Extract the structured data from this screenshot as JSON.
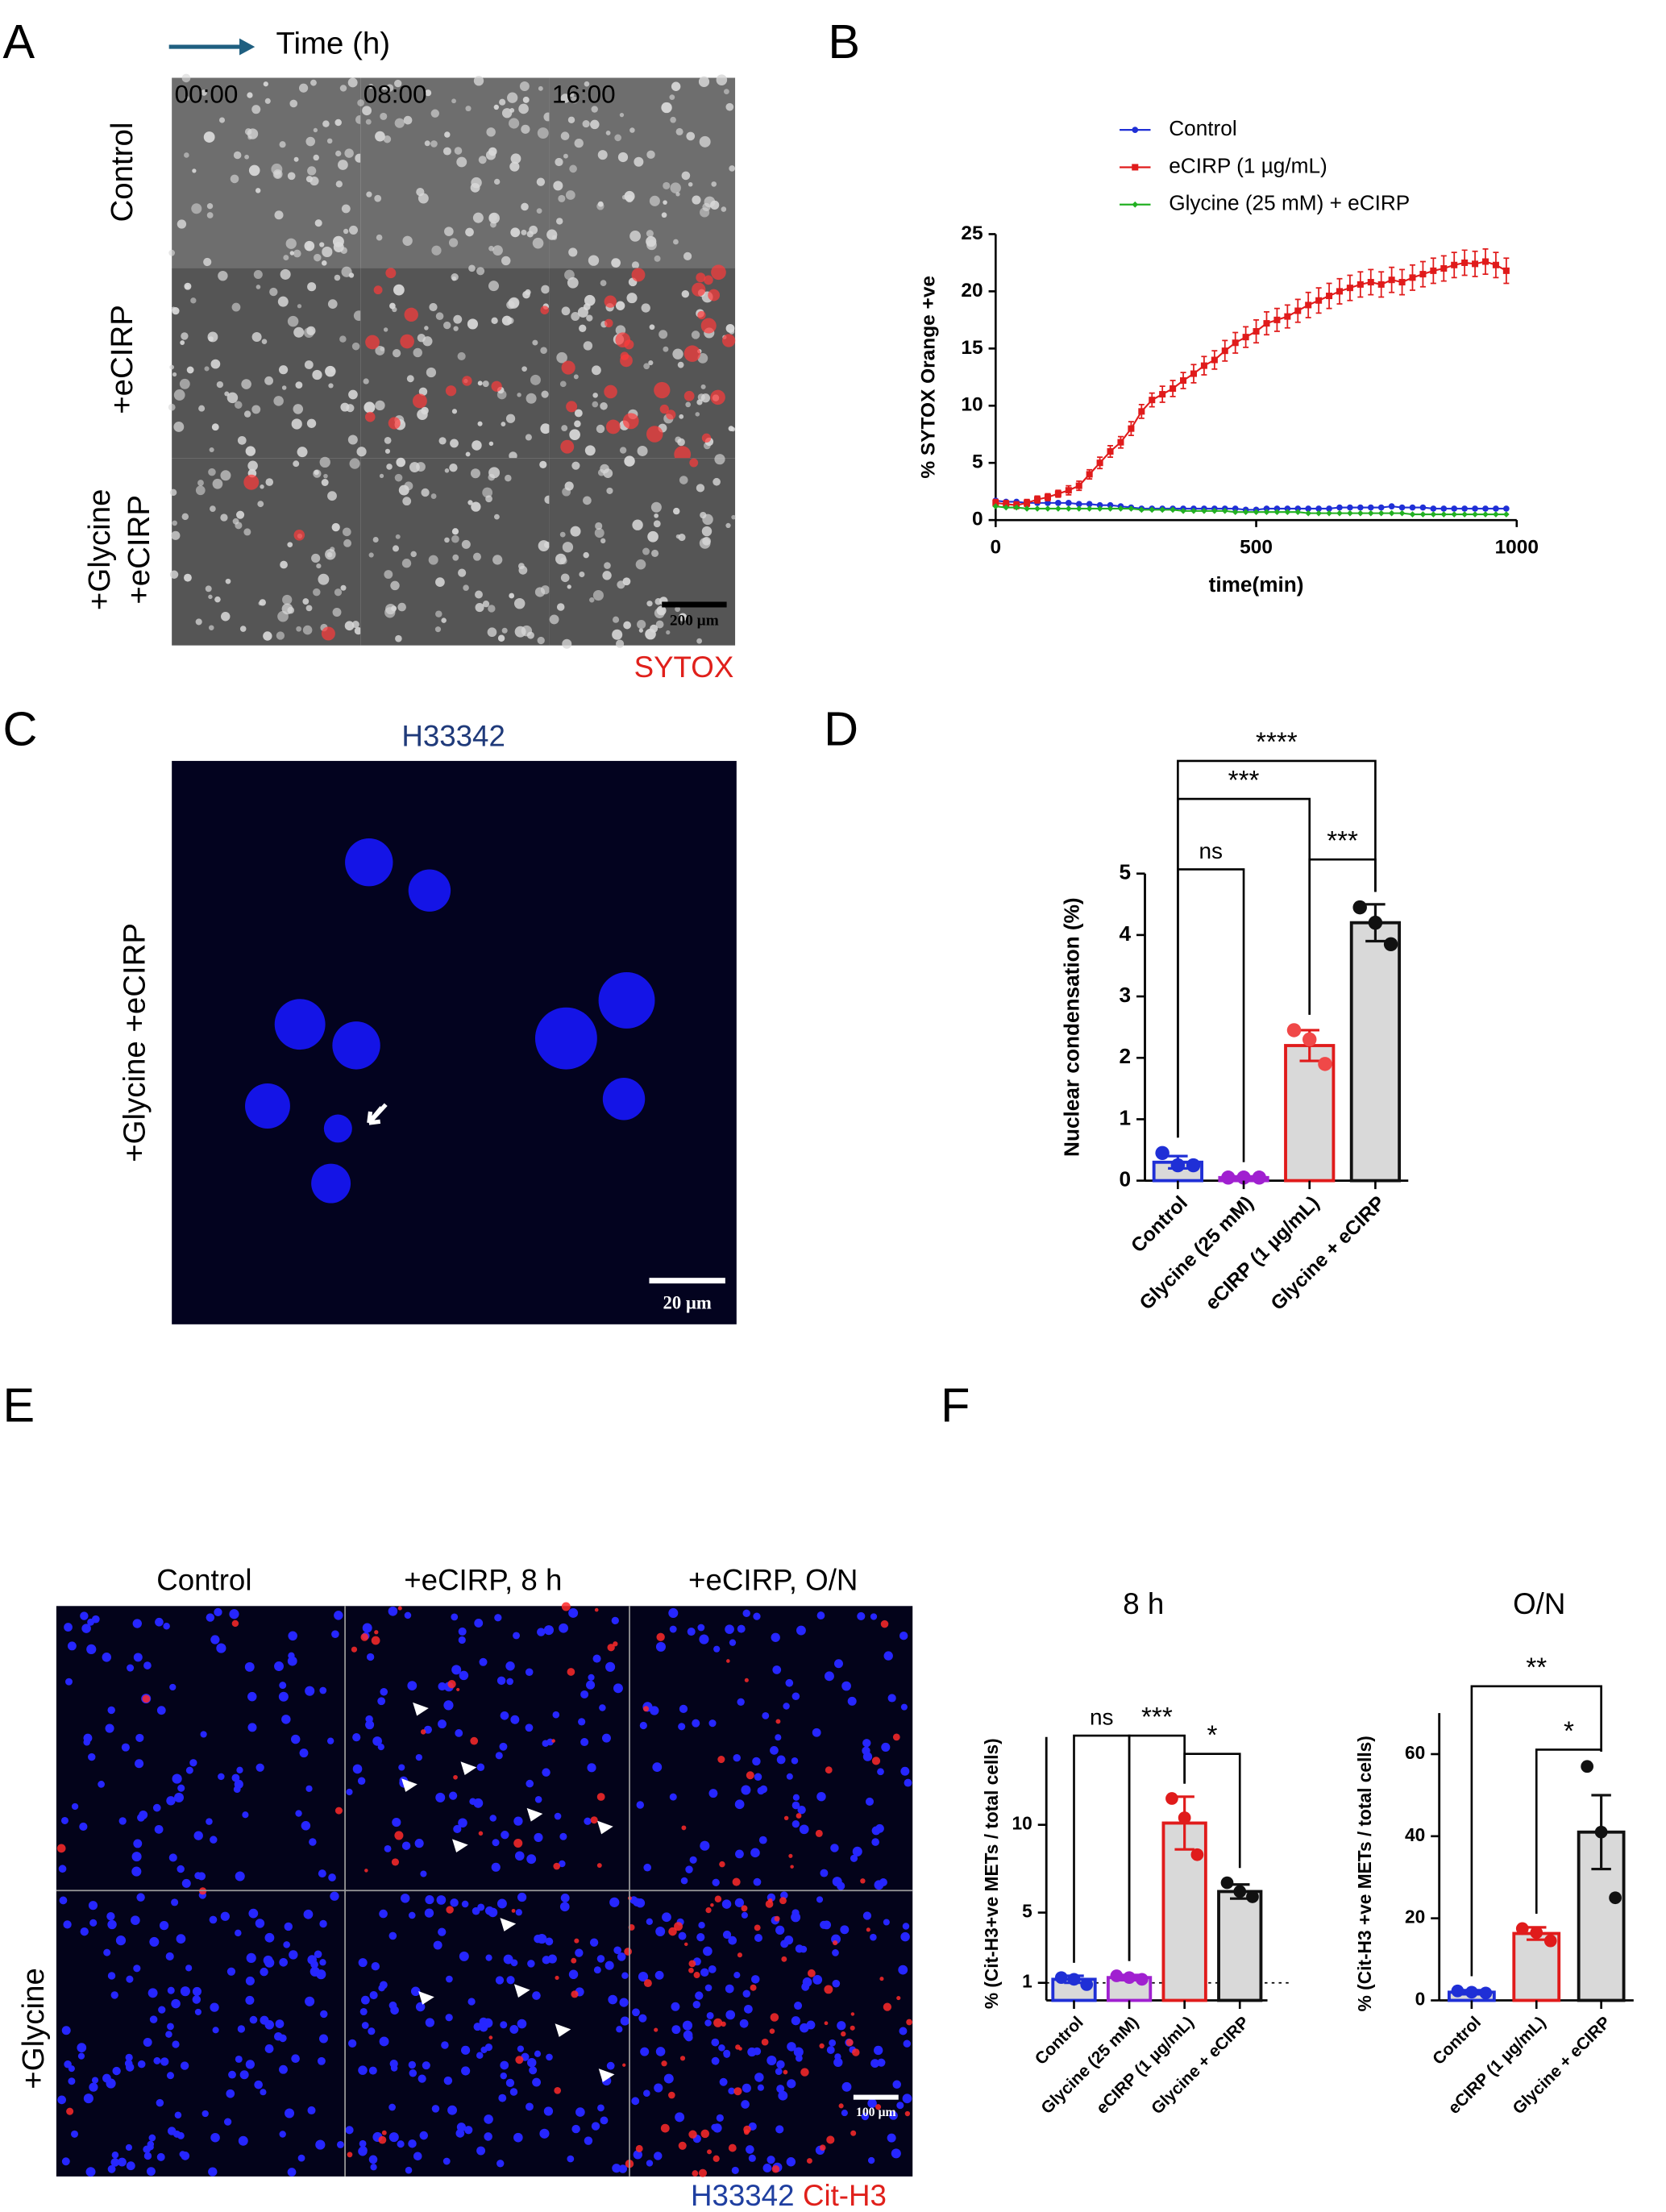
{
  "figure": {
    "panels": [
      "A",
      "B",
      "C",
      "D",
      "E",
      "F"
    ],
    "A": {
      "time_label": "Time (h)",
      "times": [
        "00:00",
        "08:00",
        "16:00"
      ],
      "rows": [
        "Control",
        "+eCIRP",
        [
          "+Glycine",
          "+eCIRP"
        ]
      ],
      "scale_bar": "200 µm",
      "stain": "SYTOX"
    },
    "C": {
      "stain": "H33342",
      "row": "+Glycine +eCIRP",
      "scale_bar": "20 µm"
    },
    "E": {
      "columns": [
        "Control",
        "+eCIRP, 8 h",
        "+eCIRP, O/N"
      ],
      "row": "+Glycine",
      "scale_bar": "100 µm",
      "stains": [
        {
          "name": "H33342",
          "color": "#1f3fa0"
        },
        {
          "name": "Cit-H3",
          "color": "#e0201b"
        }
      ]
    }
  },
  "chart_data": [
    {
      "type": "line",
      "xlabel": "time(min)",
      "ylabel": "% SYTOX Orange +ve",
      "xlim": [
        0,
        1000
      ],
      "xticks": [
        0,
        500,
        1000
      ],
      "ylim": [
        0,
        25
      ],
      "yticks": [
        0,
        5,
        10,
        15,
        20,
        25
      ],
      "x": [
        0,
        20,
        40,
        60,
        80,
        100,
        120,
        140,
        160,
        180,
        200,
        220,
        240,
        260,
        280,
        300,
        320,
        340,
        360,
        380,
        400,
        420,
        440,
        460,
        480,
        500,
        520,
        540,
        560,
        580,
        600,
        620,
        640,
        660,
        680,
        700,
        720,
        740,
        760,
        780,
        800,
        820,
        840,
        860,
        880,
        900,
        920,
        940,
        960,
        980
      ],
      "series": [
        {
          "name": "Control",
          "color": "#1f2fd6",
          "marker": "circle",
          "values": [
            1.7,
            1.6,
            1.6,
            1.5,
            1.5,
            1.5,
            1.5,
            1.5,
            1.4,
            1.4,
            1.3,
            1.3,
            1.2,
            1.1,
            1.0,
            1.0,
            1.0,
            1.0,
            1.0,
            1.0,
            1.0,
            1.0,
            1.0,
            1.0,
            0.9,
            0.9,
            1.0,
            1.0,
            1.0,
            1.0,
            1.0,
            1.0,
            1.0,
            1.1,
            1.1,
            1.1,
            1.1,
            1.1,
            1.2,
            1.1,
            1.1,
            1.1,
            1.0,
            1.0,
            1.0,
            1.0,
            1.0,
            1.0,
            1.0,
            1.0
          ]
        },
        {
          "name": "eCIRP (1 µg/mL)",
          "color": "#e01b1b",
          "marker": "square",
          "values": [
            1.5,
            1.4,
            1.3,
            1.5,
            1.8,
            2.0,
            2.3,
            2.6,
            3.0,
            4.0,
            5.0,
            6.0,
            6.8,
            8.0,
            9.5,
            10.5,
            11.0,
            11.5,
            12.2,
            12.8,
            13.5,
            14.0,
            14.8,
            15.5,
            16.0,
            16.5,
            17.2,
            17.5,
            17.8,
            18.3,
            18.8,
            19.2,
            19.6,
            20.0,
            20.3,
            20.6,
            20.8,
            20.6,
            21.0,
            20.8,
            21.2,
            21.5,
            21.8,
            22.0,
            22.3,
            22.5,
            22.4,
            22.6,
            22.3,
            21.8
          ],
          "errors": [
            0.3,
            0.3,
            0.3,
            0.3,
            0.3,
            0.3,
            0.3,
            0.4,
            0.4,
            0.4,
            0.5,
            0.5,
            0.5,
            0.6,
            0.6,
            0.6,
            0.7,
            0.7,
            0.7,
            0.8,
            0.8,
            0.8,
            0.9,
            0.9,
            0.9,
            1.0,
            1.0,
            1.0,
            1.0,
            1.0,
            1.1,
            1.1,
            1.1,
            1.1,
            1.1,
            1.1,
            1.1,
            1.1,
            1.1,
            1.1,
            1.1,
            1.1,
            1.1,
            1.1,
            1.1,
            1.1,
            1.1,
            1.1,
            1.1,
            1.1
          ]
        },
        {
          "name": "Glycine (25 mM) + eCIRP",
          "color": "#22b022",
          "marker": "diamond",
          "values": [
            1.2,
            1.1,
            1.1,
            1.0,
            1.0,
            1.0,
            1.0,
            1.0,
            1.0,
            1.0,
            1.0,
            1.0,
            1.0,
            1.0,
            0.9,
            0.9,
            0.9,
            0.9,
            0.8,
            0.8,
            0.8,
            0.8,
            0.8,
            0.7,
            0.7,
            0.7,
            0.7,
            0.7,
            0.7,
            0.7,
            0.6,
            0.6,
            0.6,
            0.6,
            0.6,
            0.6,
            0.6,
            0.6,
            0.6,
            0.6,
            0.5,
            0.5,
            0.5,
            0.5,
            0.5,
            0.5,
            0.5,
            0.5,
            0.5,
            0.5
          ]
        }
      ]
    },
    {
      "type": "bar",
      "ylabel": "Nuclear condensation (%)",
      "categories": [
        "Control",
        "Glycine (25 mM)",
        "eCIRP (1 µg/mL)",
        "Glycine + eCIRP"
      ],
      "values": [
        0.3,
        0.05,
        2.2,
        4.2
      ],
      "errors": [
        0.1,
        0.02,
        0.25,
        0.3
      ],
      "points": [
        [
          0.45,
          0.25,
          0.25
        ],
        [
          0.05,
          0.05,
          0.05
        ],
        [
          2.45,
          2.3,
          1.9
        ],
        [
          4.45,
          4.2,
          3.85
        ]
      ],
      "color": "#d9d9d9",
      "edge_colors": [
        "#1f2fd6",
        "#a020d0",
        "#e01b1b",
        "#111111"
      ],
      "point_colors": [
        "#1f2fd6",
        "#a020d0",
        "#f04848",
        "#111111"
      ],
      "ylim": [
        0,
        5
      ],
      "yticks": [
        0,
        1,
        2,
        3,
        4,
        5
      ],
      "significance": [
        {
          "pair": [
            "Control",
            "Glycine (25 mM)"
          ],
          "label": "ns"
        },
        {
          "pair": [
            "Control",
            "eCIRP (1 µg/mL)"
          ],
          "label": "***"
        },
        {
          "pair": [
            "Control",
            "Glycine + eCIRP"
          ],
          "label": "****"
        },
        {
          "pair": [
            "eCIRP (1 µg/mL)",
            "Glycine + eCIRP"
          ],
          "label": "***"
        }
      ]
    },
    {
      "type": "bar",
      "title": "8 h",
      "ylabel": "% (Cit-H3+ve METs / total cells)",
      "categories": [
        "Control",
        "Glycine (25 mM)",
        "eCIRP (1 µg/mL)",
        "Glycine + eCIRP"
      ],
      "values": [
        1.2,
        1.3,
        10.1,
        6.2
      ],
      "errors": [
        0.2,
        0.15,
        1.5,
        0.4
      ],
      "points": [
        [
          1.3,
          1.2,
          0.9
        ],
        [
          1.4,
          1.3,
          1.2
        ],
        [
          11.5,
          10.4,
          8.3
        ],
        [
          6.7,
          6.2,
          5.9
        ]
      ],
      "color": "#d9d9d9",
      "edge_colors": [
        "#1f2fd6",
        "#a020d0",
        "#e01b1b",
        "#111111"
      ],
      "point_colors": [
        "#1f2fd6",
        "#a020d0",
        "#e01b1b",
        "#111111"
      ],
      "ylim": [
        0,
        15
      ],
      "yticks": [
        1,
        5,
        10
      ],
      "reference_line": 1,
      "significance": [
        {
          "pair": [
            "Control",
            "Glycine (25 mM)"
          ],
          "label": "ns"
        },
        {
          "pair": [
            "Glycine (25 mM)",
            "eCIRP (1 µg/mL)"
          ],
          "label": "***"
        },
        {
          "pair": [
            "eCIRP (1 µg/mL)",
            "Glycine + eCIRP"
          ],
          "label": "*"
        }
      ]
    },
    {
      "type": "bar",
      "title": "O/N",
      "ylabel": "% (Cit-H3 +ve METs / total cells)",
      "categories": [
        "Control",
        "eCIRP (1 µg/mL)",
        "Glycine + eCIRP"
      ],
      "values": [
        2,
        16.3,
        41
      ],
      "errors": [
        0.5,
        1.5,
        9
      ],
      "points": [
        [
          2.3,
          2,
          1.8
        ],
        [
          17.5,
          16.5,
          14.5
        ],
        [
          57,
          41,
          25
        ]
      ],
      "color": "#d9d9d9",
      "edge_colors": [
        "#1f2fd6",
        "#e01b1b",
        "#111111"
      ],
      "point_colors": [
        "#1f2fd6",
        "#e01b1b",
        "#111111"
      ],
      "ylim": [
        0,
        70
      ],
      "yticks": [
        0,
        20,
        40,
        60
      ],
      "significance": [
        {
          "pair": [
            "Control",
            "Glycine + eCIRP"
          ],
          "label": "**"
        },
        {
          "pair": [
            "eCIRP (1 µg/mL)",
            "Glycine + eCIRP"
          ],
          "label": "*"
        }
      ]
    }
  ]
}
